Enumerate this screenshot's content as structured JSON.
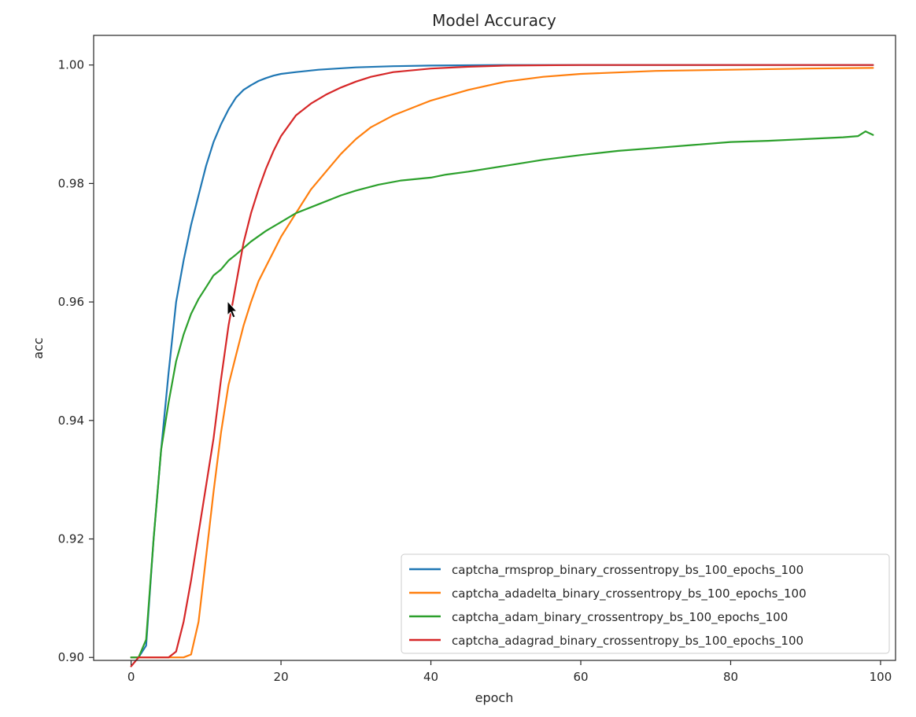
{
  "chart_data": {
    "type": "line",
    "title": "Model Accuracy",
    "xlabel": "epoch",
    "ylabel": "acc",
    "xlim": [
      -5,
      102
    ],
    "ylim": [
      0.8995,
      1.005
    ],
    "xticks": [
      0,
      20,
      40,
      60,
      80,
      100
    ],
    "xtick_labels": [
      "0",
      "20",
      "40",
      "60",
      "80",
      "100"
    ],
    "yticks": [
      0.9,
      0.92,
      0.94,
      0.96,
      0.98,
      1.0
    ],
    "ytick_labels": [
      "0.90",
      "0.92",
      "0.94",
      "0.96",
      "0.98",
      "1.00"
    ],
    "grid": false,
    "legend_position": "lower-right",
    "series": [
      {
        "name": "captcha_rmsprop_binary_crossentropy_bs_100_epochs_100",
        "color": "#1f77b4",
        "points": [
          [
            0,
            0.9
          ],
          [
            1,
            0.9
          ],
          [
            2,
            0.902
          ],
          [
            3,
            0.92
          ],
          [
            4,
            0.935
          ],
          [
            5,
            0.948
          ],
          [
            6,
            0.96
          ],
          [
            7,
            0.967
          ],
          [
            8,
            0.973
          ],
          [
            9,
            0.978
          ],
          [
            10,
            0.983
          ],
          [
            11,
            0.987
          ],
          [
            12,
            0.99
          ],
          [
            13,
            0.9925
          ],
          [
            14,
            0.9945
          ],
          [
            15,
            0.9958
          ],
          [
            16,
            0.9966
          ],
          [
            17,
            0.9973
          ],
          [
            18,
            0.9978
          ],
          [
            19,
            0.9982
          ],
          [
            20,
            0.9985
          ],
          [
            22,
            0.9988
          ],
          [
            25,
            0.9992
          ],
          [
            30,
            0.9996
          ],
          [
            35,
            0.9998
          ],
          [
            40,
            0.9999
          ],
          [
            50,
            1.0
          ],
          [
            70,
            1.0
          ],
          [
            99,
            1.0
          ]
        ]
      },
      {
        "name": "captcha_adadelta_binary_crossentropy_bs_100_epochs_100",
        "color": "#ff7f0e",
        "points": [
          [
            0,
            0.9
          ],
          [
            3,
            0.9
          ],
          [
            5,
            0.9
          ],
          [
            7,
            0.9
          ],
          [
            8,
            0.9005
          ],
          [
            9,
            0.906
          ],
          [
            10,
            0.917
          ],
          [
            11,
            0.928
          ],
          [
            12,
            0.938
          ],
          [
            13,
            0.946
          ],
          [
            14,
            0.951
          ],
          [
            15,
            0.956
          ],
          [
            16,
            0.96
          ],
          [
            17,
            0.9635
          ],
          [
            18,
            0.966
          ],
          [
            19,
            0.9685
          ],
          [
            20,
            0.971
          ],
          [
            22,
            0.975
          ],
          [
            24,
            0.979
          ],
          [
            26,
            0.982
          ],
          [
            28,
            0.985
          ],
          [
            30,
            0.9875
          ],
          [
            32,
            0.9895
          ],
          [
            35,
            0.9915
          ],
          [
            38,
            0.993
          ],
          [
            40,
            0.994
          ],
          [
            45,
            0.9958
          ],
          [
            50,
            0.9972
          ],
          [
            55,
            0.998
          ],
          [
            60,
            0.9985
          ],
          [
            70,
            0.999
          ],
          [
            80,
            0.9992
          ],
          [
            90,
            0.9994
          ],
          [
            99,
            0.9995
          ]
        ]
      },
      {
        "name": "captcha_adam_binary_crossentropy_bs_100_epochs_100",
        "color": "#2ca02c",
        "points": [
          [
            0,
            0.9
          ],
          [
            1,
            0.9
          ],
          [
            2,
            0.903
          ],
          [
            3,
            0.92
          ],
          [
            4,
            0.935
          ],
          [
            5,
            0.943
          ],
          [
            6,
            0.95
          ],
          [
            7,
            0.9545
          ],
          [
            8,
            0.958
          ],
          [
            9,
            0.9605
          ],
          [
            10,
            0.9625
          ],
          [
            11,
            0.9645
          ],
          [
            12,
            0.9655
          ],
          [
            13,
            0.967
          ],
          [
            14,
            0.968
          ],
          [
            16,
            0.9702
          ],
          [
            18,
            0.972
          ],
          [
            20,
            0.9735
          ],
          [
            22,
            0.975
          ],
          [
            25,
            0.9765
          ],
          [
            28,
            0.978
          ],
          [
            30,
            0.9788
          ],
          [
            33,
            0.9798
          ],
          [
            36,
            0.9805
          ],
          [
            40,
            0.981
          ],
          [
            42,
            0.9815
          ],
          [
            45,
            0.982
          ],
          [
            50,
            0.983
          ],
          [
            55,
            0.984
          ],
          [
            60,
            0.9848
          ],
          [
            65,
            0.9855
          ],
          [
            70,
            0.986
          ],
          [
            75,
            0.9865
          ],
          [
            80,
            0.987
          ],
          [
            85,
            0.9872
          ],
          [
            90,
            0.9875
          ],
          [
            95,
            0.9878
          ],
          [
            97,
            0.988
          ],
          [
            98,
            0.9888
          ],
          [
            99,
            0.9882
          ]
        ]
      },
      {
        "name": "captcha_adagrad_binary_crossentropy_bs_100_epochs_100",
        "color": "#d62728",
        "points": [
          [
            0,
            0.8985
          ],
          [
            1,
            0.9
          ],
          [
            3,
            0.9
          ],
          [
            5,
            0.9
          ],
          [
            6,
            0.901
          ],
          [
            7,
            0.906
          ],
          [
            8,
            0.913
          ],
          [
            9,
            0.921
          ],
          [
            10,
            0.929
          ],
          [
            11,
            0.937
          ],
          [
            12,
            0.947
          ],
          [
            13,
            0.956
          ],
          [
            14,
            0.963
          ],
          [
            15,
            0.97
          ],
          [
            16,
            0.975
          ],
          [
            17,
            0.979
          ],
          [
            18,
            0.9825
          ],
          [
            19,
            0.9855
          ],
          [
            20,
            0.988
          ],
          [
            22,
            0.9915
          ],
          [
            24,
            0.9935
          ],
          [
            26,
            0.995
          ],
          [
            28,
            0.9962
          ],
          [
            30,
            0.9972
          ],
          [
            32,
            0.998
          ],
          [
            35,
            0.9988
          ],
          [
            40,
            0.9994
          ],
          [
            45,
            0.9997
          ],
          [
            50,
            0.9999
          ],
          [
            60,
            1.0
          ],
          [
            99,
            1.0
          ]
        ]
      }
    ]
  }
}
